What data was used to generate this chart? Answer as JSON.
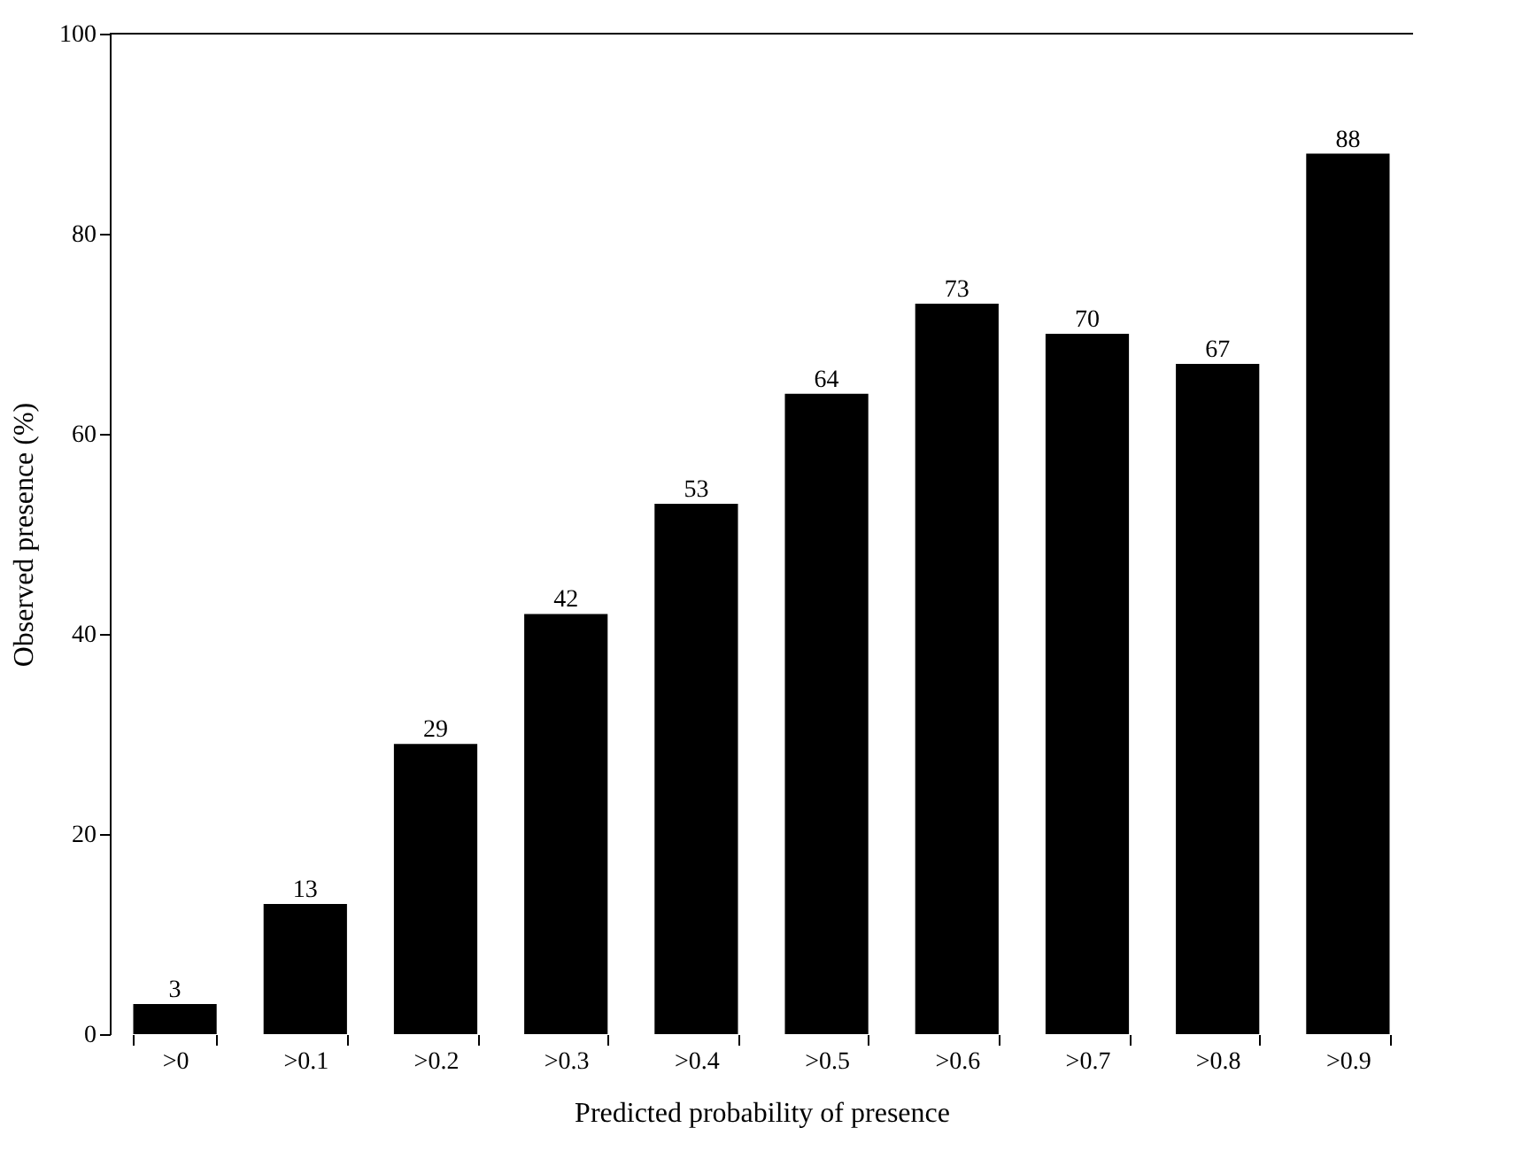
{
  "chart_data": {
    "type": "bar",
    "xlabel": "Predicted probability of presence",
    "ylabel": "Observed presence (%)",
    "categories": [
      ">0",
      ">0.1",
      ">0.2",
      ">0.3",
      ">0.4",
      ">0.5",
      ">0.6",
      ">0.7",
      ">0.8",
      ">0.9"
    ],
    "values": [
      3,
      13,
      29,
      42,
      53,
      64,
      73,
      70,
      67,
      88
    ],
    "color": "#000000",
    "data_labels": true,
    "ylim": [
      0,
      100
    ],
    "yticks": [
      0,
      20,
      40,
      60,
      80,
      100
    ],
    "grid": false
  }
}
